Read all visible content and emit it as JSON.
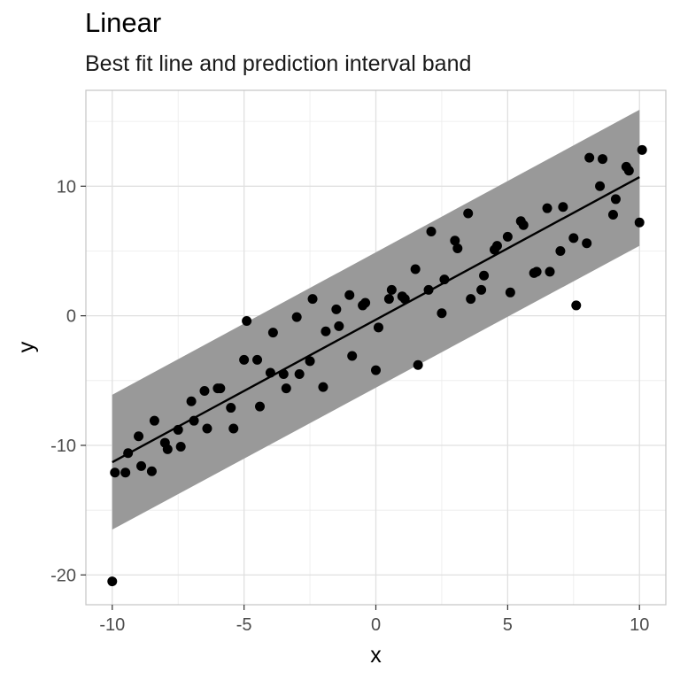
{
  "chart_data": {
    "type": "scatter",
    "title": "Linear",
    "subtitle": "Best fit line and prediction interval band",
    "xlabel": "x",
    "ylabel": "y",
    "xlim": [
      -11,
      11
    ],
    "ylim": [
      -22.3,
      17.4
    ],
    "xticks": [
      -10,
      -5,
      0,
      5,
      10
    ],
    "yticks": [
      -20,
      -10,
      0,
      10
    ],
    "xtick_labels": [
      "-10",
      "-5",
      "0",
      "5",
      "10"
    ],
    "ytick_labels": [
      "-20",
      "-10",
      "0",
      "10"
    ],
    "grid": true,
    "legend": "none",
    "colors": {
      "points": "#000000",
      "line": "#000000",
      "band": "#999999",
      "grid": "#ebebeb",
      "border": "#c4c4c4"
    },
    "fit_line": {
      "x": [
        -10,
        10
      ],
      "y": [
        -11.3,
        10.7
      ]
    },
    "prediction_band": {
      "x": [
        -10,
        10
      ],
      "lower": [
        -16.5,
        5.4
      ],
      "upper": [
        -6.1,
        15.9
      ]
    },
    "points": [
      {
        "x": -10,
        "y": -20.5
      },
      {
        "x": -9.9,
        "y": -12.1
      },
      {
        "x": -9.5,
        "y": -12.1
      },
      {
        "x": -9.4,
        "y": -10.6
      },
      {
        "x": -9.0,
        "y": -9.3
      },
      {
        "x": -8.9,
        "y": -11.6
      },
      {
        "x": -8.5,
        "y": -12.0
      },
      {
        "x": -8.4,
        "y": -8.1
      },
      {
        "x": -8.0,
        "y": -9.8
      },
      {
        "x": -7.9,
        "y": -10.3
      },
      {
        "x": -7.5,
        "y": -8.8
      },
      {
        "x": -7.4,
        "y": -10.1
      },
      {
        "x": -7.0,
        "y": -6.6
      },
      {
        "x": -6.9,
        "y": -8.1
      },
      {
        "x": -6.5,
        "y": -5.8
      },
      {
        "x": -6.4,
        "y": -8.7
      },
      {
        "x": -6.0,
        "y": -5.6
      },
      {
        "x": -5.9,
        "y": -5.6
      },
      {
        "x": -5.5,
        "y": -7.1
      },
      {
        "x": -5.4,
        "y": -8.7
      },
      {
        "x": -5.0,
        "y": -3.4
      },
      {
        "x": -4.9,
        "y": -0.4
      },
      {
        "x": -4.5,
        "y": -3.4
      },
      {
        "x": -4.4,
        "y": -7.0
      },
      {
        "x": -4.0,
        "y": -4.4
      },
      {
        "x": -3.9,
        "y": -1.3
      },
      {
        "x": -3.5,
        "y": -4.5
      },
      {
        "x": -3.4,
        "y": -5.6
      },
      {
        "x": -3.0,
        "y": -0.1
      },
      {
        "x": -2.9,
        "y": -4.5
      },
      {
        "x": -2.5,
        "y": -3.5
      },
      {
        "x": -2.4,
        "y": 1.3
      },
      {
        "x": -2.0,
        "y": -5.5
      },
      {
        "x": -1.9,
        "y": -1.2
      },
      {
        "x": -1.5,
        "y": 0.5
      },
      {
        "x": -1.4,
        "y": -0.8
      },
      {
        "x": -1.0,
        "y": 1.6
      },
      {
        "x": -0.9,
        "y": -3.1
      },
      {
        "x": -0.5,
        "y": 0.8
      },
      {
        "x": -0.4,
        "y": 1.0
      },
      {
        "x": 0.0,
        "y": -4.2
      },
      {
        "x": 0.1,
        "y": -0.9
      },
      {
        "x": 0.5,
        "y": 1.3
      },
      {
        "x": 0.6,
        "y": 2.0
      },
      {
        "x": 1.0,
        "y": 1.5
      },
      {
        "x": 1.1,
        "y": 1.3
      },
      {
        "x": 1.5,
        "y": 3.6
      },
      {
        "x": 1.6,
        "y": -3.8
      },
      {
        "x": 2.0,
        "y": 2.0
      },
      {
        "x": 2.1,
        "y": 6.5
      },
      {
        "x": 2.5,
        "y": 0.2
      },
      {
        "x": 2.6,
        "y": 2.8
      },
      {
        "x": 3.0,
        "y": 5.8
      },
      {
        "x": 3.1,
        "y": 5.2
      },
      {
        "x": 3.5,
        "y": 7.9
      },
      {
        "x": 3.6,
        "y": 1.3
      },
      {
        "x": 4.0,
        "y": 2.0
      },
      {
        "x": 4.1,
        "y": 3.1
      },
      {
        "x": 4.5,
        "y": 5.1
      },
      {
        "x": 4.6,
        "y": 5.4
      },
      {
        "x": 5.0,
        "y": 6.1
      },
      {
        "x": 5.1,
        "y": 1.8
      },
      {
        "x": 5.5,
        "y": 7.3
      },
      {
        "x": 5.6,
        "y": 7.0
      },
      {
        "x": 6.0,
        "y": 3.3
      },
      {
        "x": 6.1,
        "y": 3.4
      },
      {
        "x": 6.5,
        "y": 8.3
      },
      {
        "x": 6.6,
        "y": 3.4
      },
      {
        "x": 7.0,
        "y": 5.0
      },
      {
        "x": 7.1,
        "y": 8.4
      },
      {
        "x": 7.5,
        "y": 6.0
      },
      {
        "x": 7.6,
        "y": 0.8
      },
      {
        "x": 8.0,
        "y": 5.6
      },
      {
        "x": 8.1,
        "y": 12.2
      },
      {
        "x": 8.5,
        "y": 10.0
      },
      {
        "x": 8.6,
        "y": 12.1
      },
      {
        "x": 9.0,
        "y": 7.8
      },
      {
        "x": 9.1,
        "y": 9.0
      },
      {
        "x": 9.5,
        "y": 11.5
      },
      {
        "x": 9.6,
        "y": 11.2
      },
      {
        "x": 10.0,
        "y": 7.2
      },
      {
        "x": 10.1,
        "y": 12.8
      }
    ]
  }
}
